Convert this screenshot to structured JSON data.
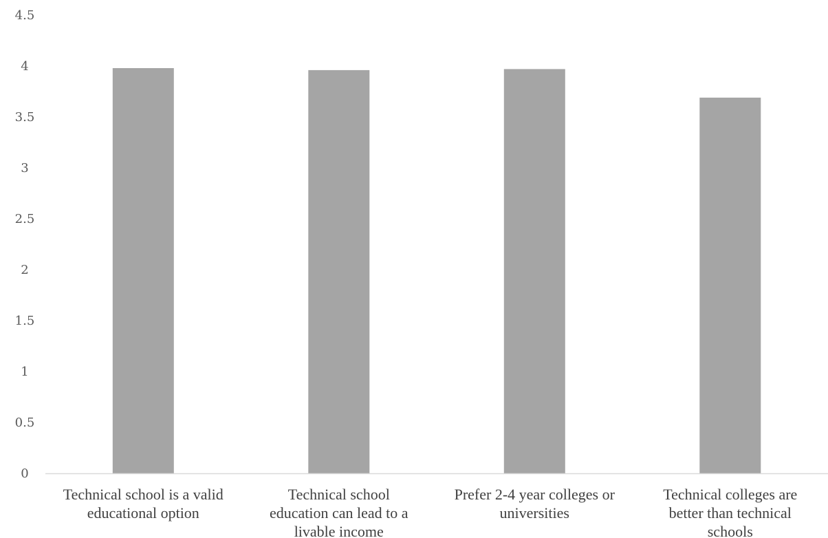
{
  "chart_data": {
    "type": "bar",
    "title": "",
    "xlabel": "",
    "ylabel": "",
    "categories": [
      [
        "Technical school is a valid",
        "educational option"
      ],
      [
        "Technical school",
        "education can lead to a",
        "livable income"
      ],
      [
        "Prefer 2-4 year colleges or",
        "universities"
      ],
      [
        "Technical colleges are",
        "better than technical",
        "schools"
      ]
    ],
    "values": [
      3.98,
      3.96,
      3.97,
      3.69
    ],
    "ylim": [
      0,
      4.5
    ],
    "yticks": [
      "0",
      "0.5",
      "1",
      "1.5",
      "2",
      "2.5",
      "3",
      "3.5",
      "4",
      "4.5"
    ],
    "grid": false,
    "legend": "none",
    "bar_color": "#a5a5a5",
    "axis_color": "#d9d9d9"
  }
}
